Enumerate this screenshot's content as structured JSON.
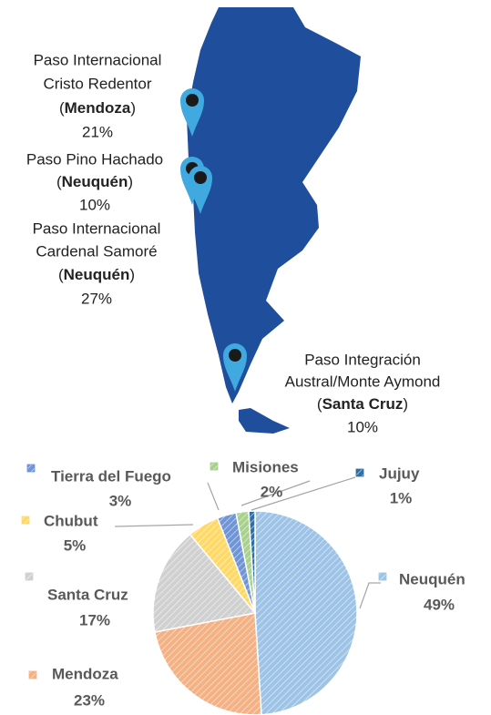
{
  "map": {
    "crossings": [
      {
        "name_lines": [
          "Paso Internacional",
          "Cristo Redentor"
        ],
        "province_line": [
          "(",
          "Mendoza",
          ")"
        ],
        "percent": "21%"
      },
      {
        "name_lines": [
          "Paso Pino Hachado"
        ],
        "province_line": [
          "(",
          "Neuquén",
          ")"
        ],
        "percent": "10%"
      },
      {
        "name_lines": [
          "Paso Internacional",
          "Cardenal Samoré"
        ],
        "province_line": [
          "(",
          "Neuquén",
          ")"
        ],
        "percent": "27%"
      },
      {
        "name_lines": [
          "Paso Integración",
          "Austral/Monte Aymond"
        ],
        "province_line": [
          "(",
          "Santa Cruz",
          ")"
        ],
        "percent": "10%"
      }
    ]
  },
  "chart_data": {
    "type": "pie",
    "categories": [
      "Neuquén",
      "Mendoza",
      "Santa Cruz",
      "Chubut",
      "Tierra del Fuego",
      "Misiones",
      "Jujuy"
    ],
    "values": [
      49,
      23,
      17,
      5,
      3,
      2,
      1
    ],
    "value_labels": [
      "49%",
      "23%",
      "17%",
      "5%",
      "3%",
      "2%",
      "1%"
    ],
    "colors": [
      "#9dc3e6",
      "#f4b183",
      "#d0d0d0",
      "#ffd966",
      "#6f95d6",
      "#a9d18e",
      "#2e6fa8"
    ]
  }
}
